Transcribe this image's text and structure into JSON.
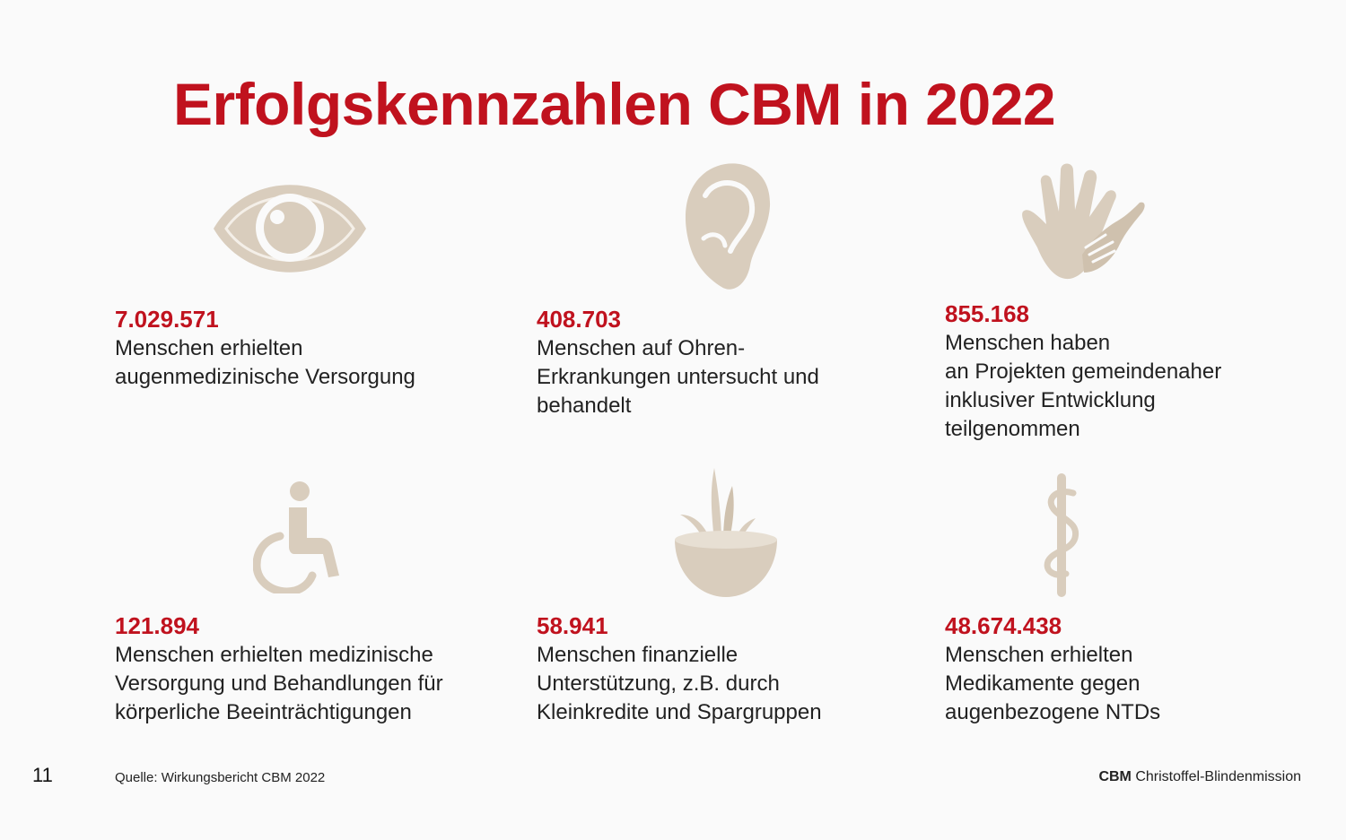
{
  "title": "Erfolgskennzahlen CBM in 2022",
  "colors": {
    "accent": "#c0121e",
    "icon": "#d9cdbd"
  },
  "stats": [
    {
      "icon": "eye-icon",
      "number": "7.029.571",
      "text": "Menschen erhielten\naugenmedizinische Versorgung"
    },
    {
      "icon": "ear-icon",
      "number": "408.703",
      "text": "Menschen auf Ohren-\nErkrankungen untersucht und\nbehandelt"
    },
    {
      "icon": "hands-icon",
      "number": "855.168",
      "text": "Menschen haben\nan Projekten gemeindenaher\ninklusiver Entwicklung\nteilgenommen"
    },
    {
      "icon": "wheelchair-icon",
      "number": "121.894",
      "text": "Menschen erhielten medizinische\nVersorgung und Behandlungen für\nkörperliche Beeinträchtigungen"
    },
    {
      "icon": "grain-bowl-icon",
      "number": "58.941",
      "text": "Menschen finanzielle\nUnterstützung, z.B. durch\nKleinkredite und Spargruppen"
    },
    {
      "icon": "caduceus-icon",
      "number": "48.674.438",
      "text": "Menschen erhielten\nMedikamente gegen\naugenbezogene NTDs"
    }
  ],
  "footer": {
    "page_number": "11",
    "source": "Quelle: Wirkungsbericht CBM 2022",
    "brand_short": "CBM",
    "brand_name": "Christoffel-Blindenmission"
  }
}
